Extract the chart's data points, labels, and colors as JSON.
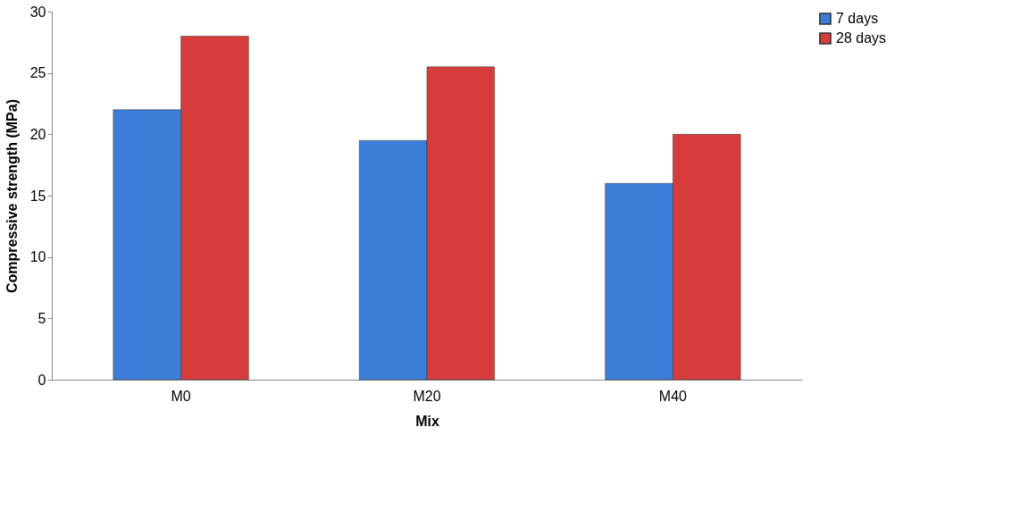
{
  "chart_data": {
    "type": "bar",
    "xlabel": "Mix",
    "ylabel": "Compressive strength (MPa)",
    "categories": [
      "M0",
      "M20",
      "M40"
    ],
    "series": [
      {
        "name": "7 days",
        "color": "#3b7dd8",
        "values": [
          22,
          19.5,
          16
        ]
      },
      {
        "name": "28 days",
        "color": "#d63c3c",
        "values": [
          28,
          25.5,
          20
        ]
      }
    ],
    "ylim": [
      0,
      30
    ],
    "yticks": [
      0,
      5,
      10,
      15,
      20,
      25,
      30
    ],
    "grid": false,
    "legend": "right"
  }
}
